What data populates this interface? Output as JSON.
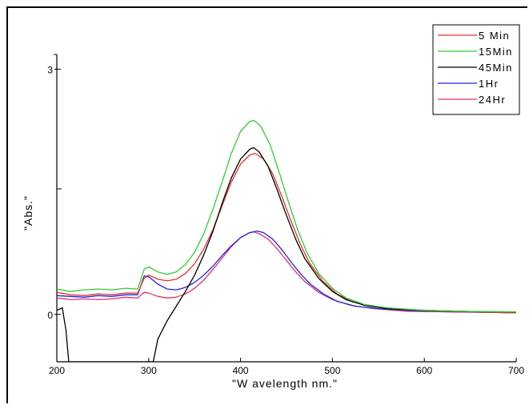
{
  "chart_data": {
    "type": "line",
    "xlabel": "\"W avelength nm.\"",
    "ylabel": "\"Abs.\"",
    "xlim": [
      200,
      700
    ],
    "ylim": [
      -0.58,
      3.18
    ],
    "x_ticks": [
      "200",
      "300",
      "400",
      "500",
      "600",
      "700"
    ],
    "y_ticks": [
      "0",
      "3"
    ],
    "grid": false,
    "legend_position": "top-right",
    "series": [
      {
        "name": "5 Min",
        "color": "#e8312f",
        "points": [
          [
            200,
            0.27
          ],
          [
            215,
            0.24
          ],
          [
            230,
            0.23
          ],
          [
            245,
            0.25
          ],
          [
            260,
            0.24
          ],
          [
            275,
            0.26
          ],
          [
            288,
            0.26
          ],
          [
            295,
            0.44
          ],
          [
            300,
            0.48
          ],
          [
            310,
            0.43
          ],
          [
            320,
            0.41
          ],
          [
            330,
            0.43
          ],
          [
            340,
            0.5
          ],
          [
            350,
            0.62
          ],
          [
            360,
            0.8
          ],
          [
            370,
            1.04
          ],
          [
            380,
            1.33
          ],
          [
            390,
            1.62
          ],
          [
            400,
            1.84
          ],
          [
            410,
            1.95
          ],
          [
            416,
            1.97
          ],
          [
            425,
            1.9
          ],
          [
            435,
            1.72
          ],
          [
            445,
            1.44
          ],
          [
            455,
            1.14
          ],
          [
            465,
            0.86
          ],
          [
            475,
            0.63
          ],
          [
            490,
            0.4
          ],
          [
            505,
            0.25
          ],
          [
            520,
            0.16
          ],
          [
            540,
            0.1
          ],
          [
            570,
            0.06
          ],
          [
            610,
            0.04
          ],
          [
            650,
            0.03
          ],
          [
            700,
            0.02
          ]
        ]
      },
      {
        "name": "15Min",
        "color": "#33cc33",
        "points": [
          [
            200,
            0.31
          ],
          [
            215,
            0.28
          ],
          [
            230,
            0.3
          ],
          [
            245,
            0.31
          ],
          [
            260,
            0.3
          ],
          [
            275,
            0.32
          ],
          [
            288,
            0.31
          ],
          [
            295,
            0.55
          ],
          [
            300,
            0.58
          ],
          [
            310,
            0.52
          ],
          [
            320,
            0.49
          ],
          [
            330,
            0.52
          ],
          [
            340,
            0.61
          ],
          [
            350,
            0.76
          ],
          [
            360,
            0.99
          ],
          [
            370,
            1.29
          ],
          [
            380,
            1.62
          ],
          [
            390,
            1.97
          ],
          [
            400,
            2.24
          ],
          [
            410,
            2.36
          ],
          [
            415,
            2.37
          ],
          [
            422,
            2.3
          ],
          [
            432,
            2.08
          ],
          [
            442,
            1.74
          ],
          [
            452,
            1.38
          ],
          [
            462,
            1.04
          ],
          [
            472,
            0.76
          ],
          [
            485,
            0.5
          ],
          [
            500,
            0.32
          ],
          [
            515,
            0.2
          ],
          [
            535,
            0.12
          ],
          [
            560,
            0.08
          ],
          [
            600,
            0.05
          ],
          [
            650,
            0.035
          ],
          [
            700,
            0.03
          ]
        ]
      },
      {
        "name": "45Min",
        "color": "#000000",
        "points": [
          [
            200,
            0.05
          ],
          [
            206,
            0.08
          ],
          [
            210,
            -0.2
          ],
          [
            213,
            -0.58
          ],
          [
            305,
            -0.58
          ],
          [
            310,
            -0.3
          ],
          [
            320,
            -0.08
          ],
          [
            330,
            0.1
          ],
          [
            340,
            0.28
          ],
          [
            350,
            0.48
          ],
          [
            360,
            0.73
          ],
          [
            370,
            1.02
          ],
          [
            380,
            1.36
          ],
          [
            390,
            1.67
          ],
          [
            400,
            1.9
          ],
          [
            410,
            2.02
          ],
          [
            414,
            2.04
          ],
          [
            420,
            1.99
          ],
          [
            430,
            1.81
          ],
          [
            440,
            1.52
          ],
          [
            450,
            1.21
          ],
          [
            460,
            0.92
          ],
          [
            470,
            0.68
          ],
          [
            485,
            0.44
          ],
          [
            500,
            0.28
          ],
          [
            515,
            0.18
          ],
          [
            535,
            0.11
          ],
          [
            560,
            0.07
          ],
          [
            600,
            0.05
          ],
          [
            650,
            0.035
          ],
          [
            700,
            0.03
          ]
        ]
      },
      {
        "name": "1Hr",
        "color": "#2222dd",
        "points": [
          [
            200,
            0.23
          ],
          [
            215,
            0.22
          ],
          [
            230,
            0.21
          ],
          [
            245,
            0.23
          ],
          [
            260,
            0.22
          ],
          [
            275,
            0.24
          ],
          [
            288,
            0.24
          ],
          [
            295,
            0.47
          ],
          [
            300,
            0.46
          ],
          [
            310,
            0.37
          ],
          [
            320,
            0.31
          ],
          [
            330,
            0.3
          ],
          [
            340,
            0.33
          ],
          [
            350,
            0.39
          ],
          [
            360,
            0.48
          ],
          [
            370,
            0.59
          ],
          [
            380,
            0.72
          ],
          [
            390,
            0.84
          ],
          [
            400,
            0.94
          ],
          [
            410,
            1.0
          ],
          [
            418,
            1.02
          ],
          [
            425,
            1.0
          ],
          [
            435,
            0.92
          ],
          [
            445,
            0.79
          ],
          [
            455,
            0.64
          ],
          [
            465,
            0.5
          ],
          [
            475,
            0.38
          ],
          [
            490,
            0.25
          ],
          [
            505,
            0.16
          ],
          [
            525,
            0.1
          ],
          [
            550,
            0.07
          ],
          [
            590,
            0.04
          ],
          [
            640,
            0.03
          ],
          [
            700,
            0.02
          ]
        ]
      },
      {
        "name": "24Hr",
        "color": "#e0306e",
        "points": [
          [
            200,
            0.2
          ],
          [
            215,
            0.18
          ],
          [
            230,
            0.19
          ],
          [
            245,
            0.18
          ],
          [
            260,
            0.19
          ],
          [
            275,
            0.21
          ],
          [
            288,
            0.2
          ],
          [
            295,
            0.27
          ],
          [
            300,
            0.26
          ],
          [
            310,
            0.22
          ],
          [
            320,
            0.2
          ],
          [
            330,
            0.21
          ],
          [
            340,
            0.25
          ],
          [
            350,
            0.32
          ],
          [
            360,
            0.42
          ],
          [
            370,
            0.55
          ],
          [
            380,
            0.69
          ],
          [
            390,
            0.83
          ],
          [
            400,
            0.94
          ],
          [
            410,
            1.0
          ],
          [
            414,
            1.01
          ],
          [
            420,
            0.99
          ],
          [
            430,
            0.92
          ],
          [
            440,
            0.8
          ],
          [
            450,
            0.66
          ],
          [
            460,
            0.52
          ],
          [
            470,
            0.4
          ],
          [
            485,
            0.27
          ],
          [
            500,
            0.18
          ],
          [
            520,
            0.11
          ],
          [
            545,
            0.07
          ],
          [
            580,
            0.04
          ],
          [
            630,
            0.03
          ],
          [
            700,
            0.02
          ]
        ]
      }
    ]
  }
}
